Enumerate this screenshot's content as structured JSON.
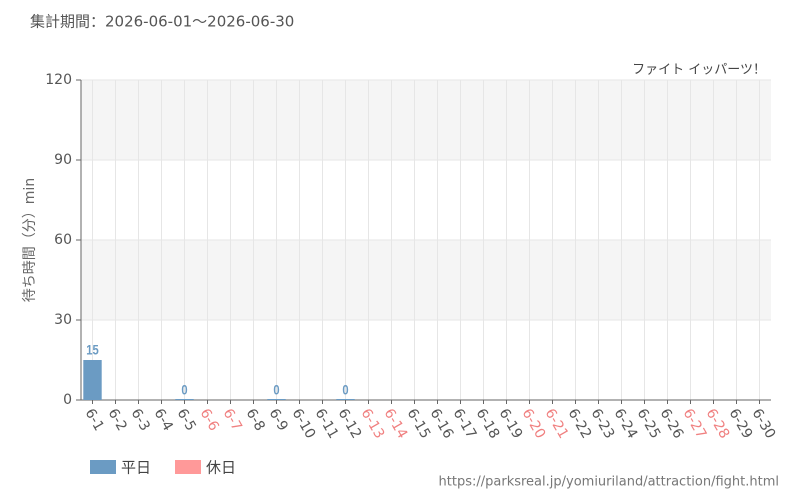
{
  "chart_data": {
    "type": "bar",
    "title": "集計期間：2026-06-01～2026-06-30",
    "subtitle": "ファイト イッパーツ！",
    "y_label": "待ち時間（分）min",
    "source": "https://parksreal.jp/yomiuriland/attraction/fight.html",
    "categories": [
      "6-1",
      "6-2",
      "6-3",
      "6-4",
      "6-5",
      "6-6",
      "6-7",
      "6-8",
      "6-9",
      "6-10",
      "6-11",
      "6-12",
      "6-13",
      "6-14",
      "6-15",
      "6-16",
      "6-17",
      "6-18",
      "6-19",
      "6-20",
      "6-21",
      "6-22",
      "6-23",
      "6-24",
      "6-25",
      "6-26",
      "6-27",
      "6-28",
      "6-29",
      "6-30"
    ],
    "category_colors": [
      "#555",
      "#555",
      "#555",
      "#555",
      "#555",
      "#f08080",
      "#f08080",
      "#555",
      "#555",
      "#555",
      "#555",
      "#555",
      "#f08080",
      "#f08080",
      "#555",
      "#555",
      "#555",
      "#555",
      "#555",
      "#f08080",
      "#f08080",
      "#555",
      "#555",
      "#555",
      "#555",
      "#555",
      "#f08080",
      "#f08080",
      "#555",
      "#555"
    ],
    "series": [
      {
        "name": "平日",
        "color": "#6b9bc3",
        "values": [
          15,
          null,
          null,
          null,
          0,
          null,
          null,
          null,
          0,
          null,
          null,
          0,
          null,
          null,
          null,
          null,
          null,
          null,
          null,
          null,
          null,
          null,
          null,
          null,
          null,
          null,
          null,
          null,
          null,
          null
        ]
      },
      {
        "name": "休日",
        "color": "#ff9999",
        "values": [
          null,
          null,
          null,
          null,
          null,
          null,
          null,
          null,
          null,
          null,
          null,
          null,
          null,
          null,
          null,
          null,
          null,
          null,
          null,
          null,
          null,
          null,
          null,
          null,
          null,
          null,
          null,
          null,
          null,
          null
        ]
      }
    ],
    "ylim": [
      0,
      120
    ],
    "yticks": [
      0,
      30,
      60,
      90,
      120
    ],
    "grid": true
  }
}
